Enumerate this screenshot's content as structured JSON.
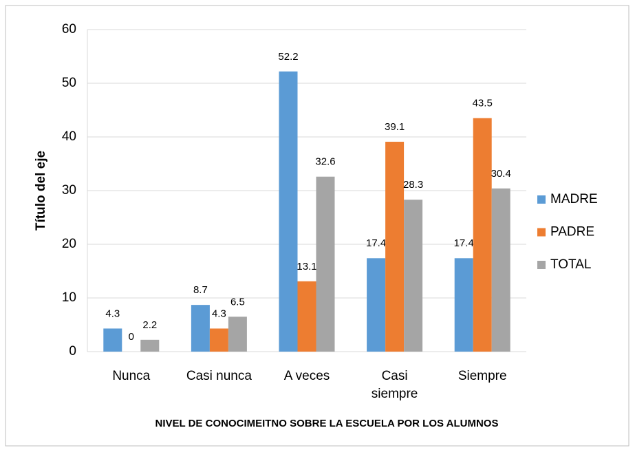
{
  "chart_data": {
    "type": "bar",
    "x_label": "NIVEL DE CONOCIMEITNO SOBRE LA ESCUELA POR  LOS ALUMNOS",
    "y_label": "Título del eje",
    "categories": [
      "Nunca",
      "Casi nunca",
      "A veces",
      "Casi siempre",
      "Siempre"
    ],
    "series": [
      {
        "name": "MADRE",
        "color": "#5b9bd5",
        "values": [
          4.3,
          8.7,
          52.2,
          17.4,
          17.4
        ]
      },
      {
        "name": "PADRE",
        "color": "#ed7d31",
        "values": [
          0,
          4.3,
          13.1,
          39.1,
          43.5
        ]
      },
      {
        "name": "TOTAL",
        "color": "#a5a5a5",
        "values": [
          2.2,
          6.5,
          32.6,
          28.3,
          30.4
        ]
      }
    ],
    "ylim": [
      0,
      60
    ],
    "yticks": [
      0,
      10,
      20,
      30,
      40,
      50,
      60
    ],
    "grid": true,
    "legend": "right"
  }
}
